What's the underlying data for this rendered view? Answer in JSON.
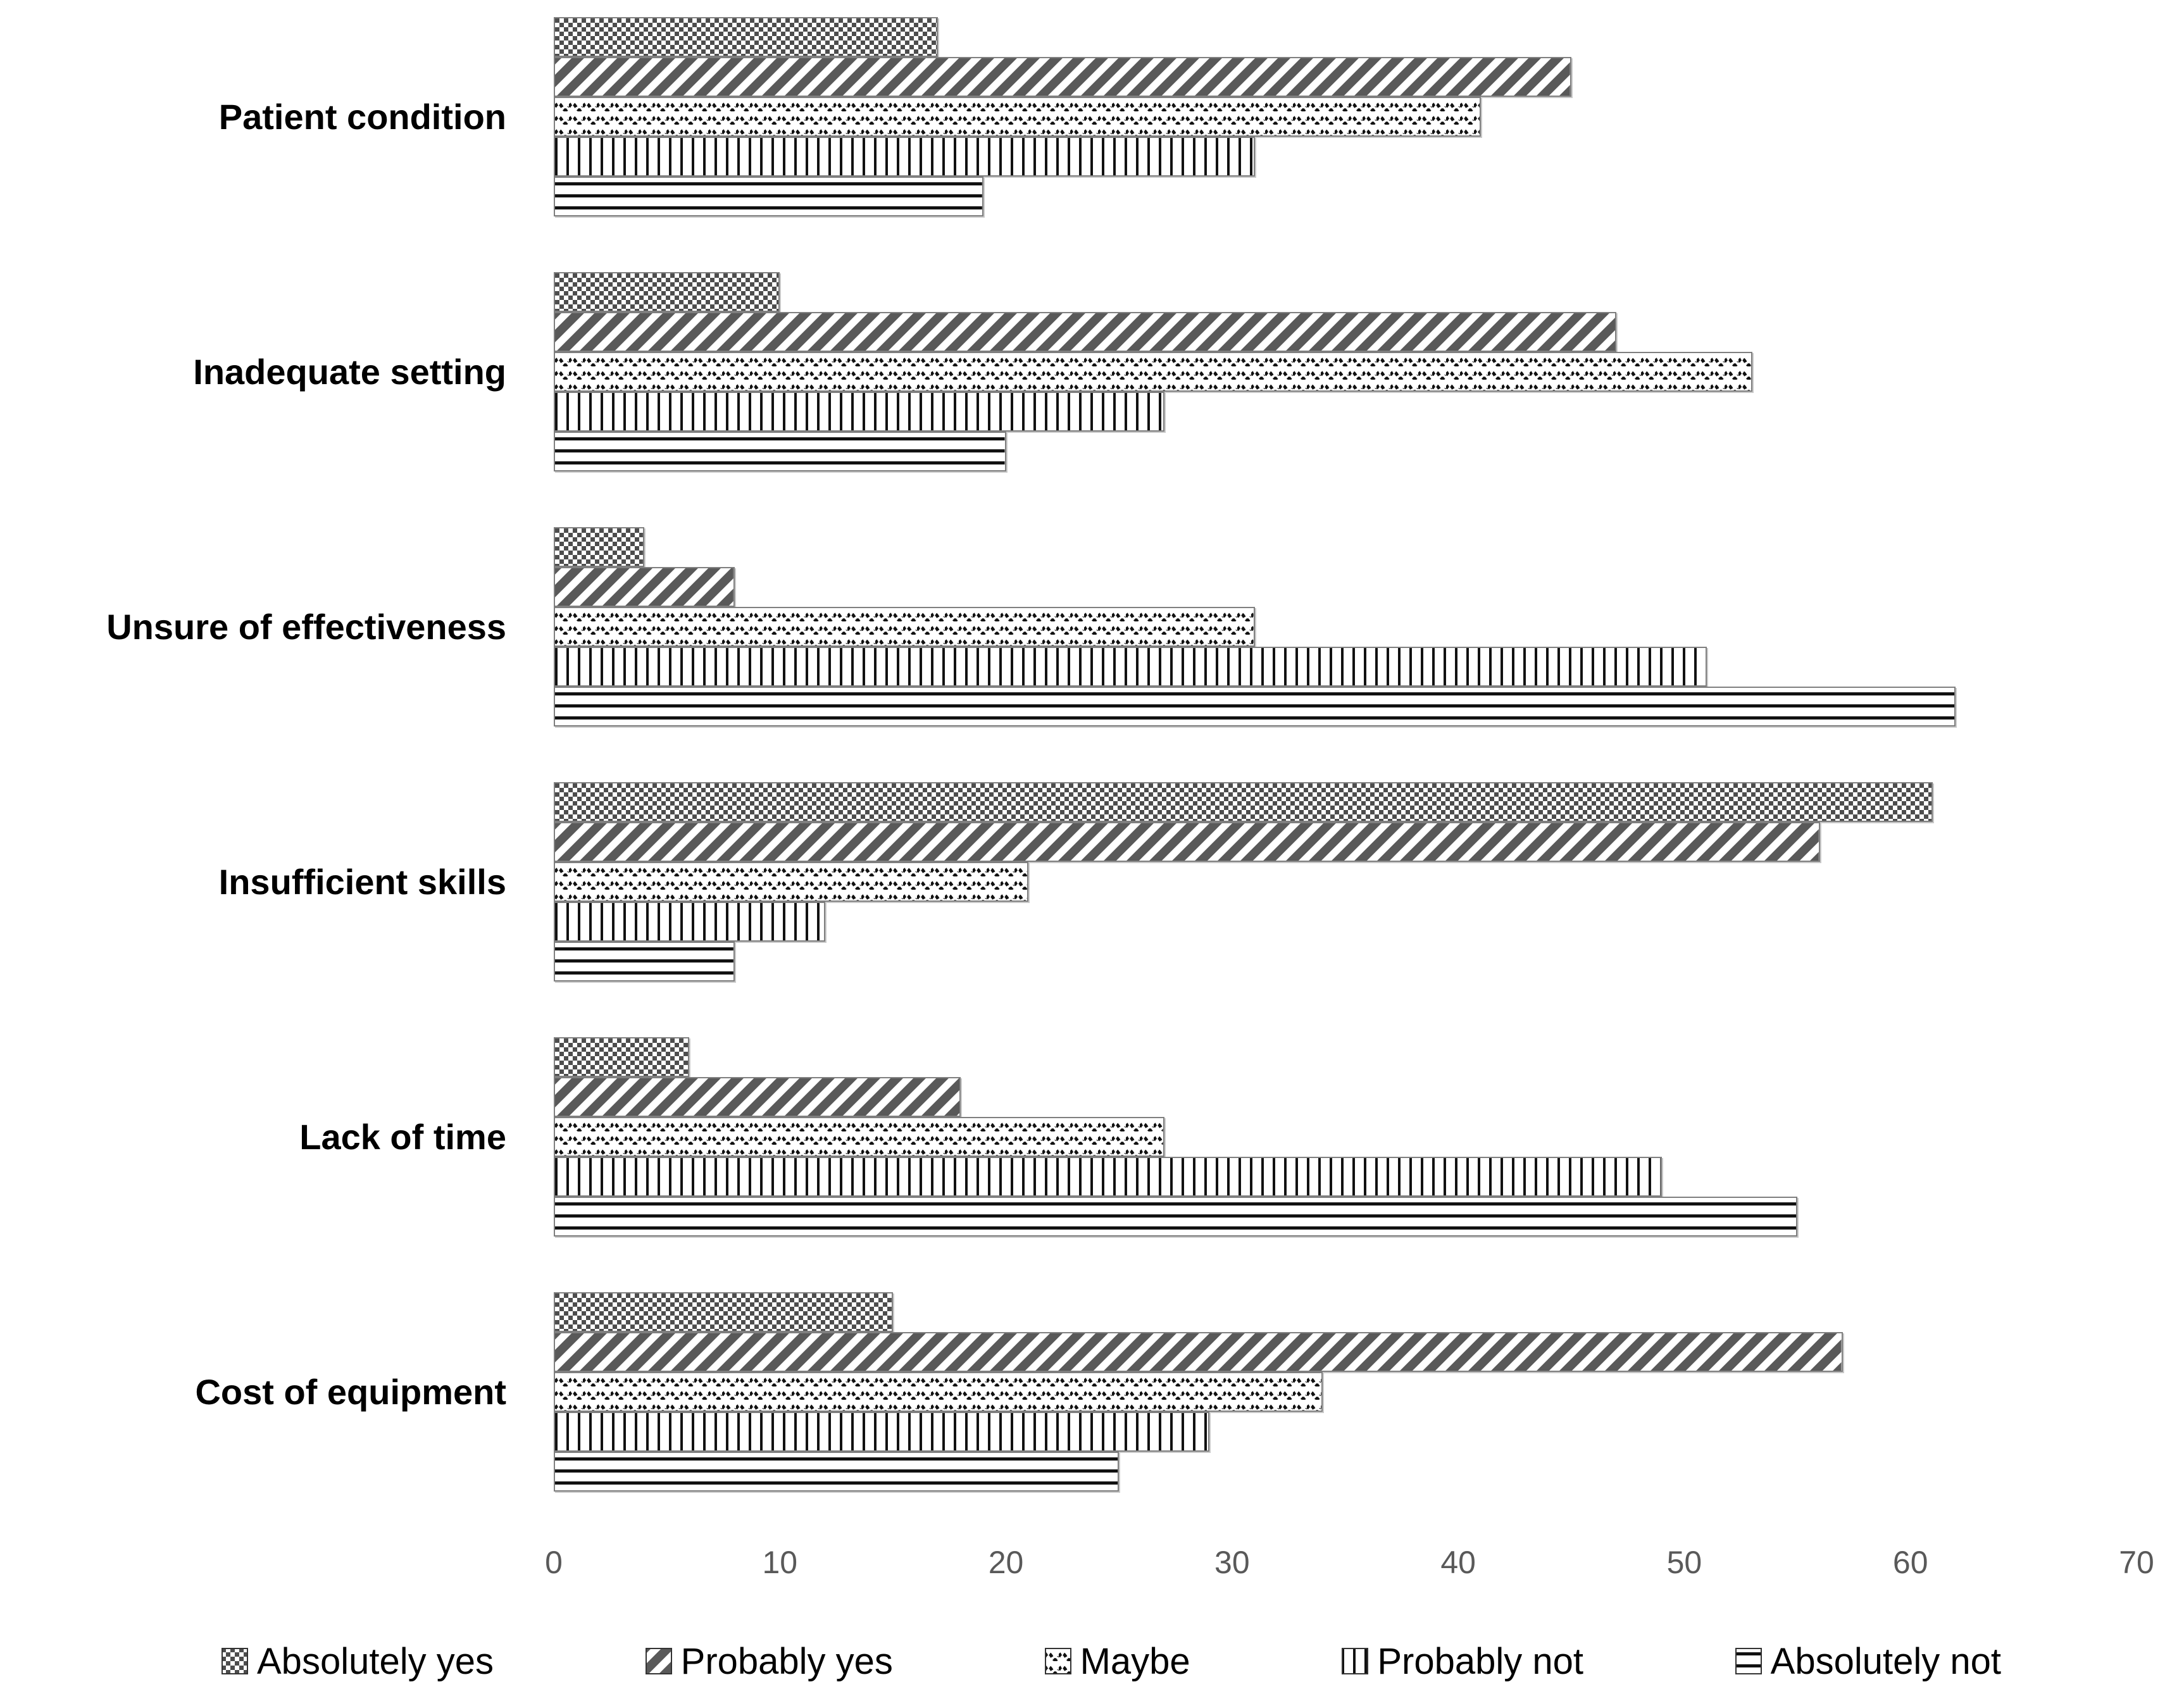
{
  "chart_data": {
    "type": "bar",
    "orientation": "horizontal",
    "title": "",
    "xlabel": "",
    "ylabel": "",
    "xlim": [
      0,
      70
    ],
    "xticks": [
      0,
      10,
      20,
      30,
      40,
      50,
      60,
      70
    ],
    "grid": false,
    "legend_position": "bottom",
    "categories": [
      "Patient condition",
      "Inadequate setting",
      "Unsure of effectiveness",
      "Insufficient skills",
      "Lack of time",
      "Cost of equipment"
    ],
    "series": [
      {
        "name": "Absolutely yes",
        "pattern": "checker",
        "values": [
          17,
          10,
          4,
          61,
          6,
          15
        ]
      },
      {
        "name": "Probably yes",
        "pattern": "diagonal",
        "values": [
          45,
          47,
          8,
          56,
          18,
          57
        ]
      },
      {
        "name": "Maybe",
        "pattern": "wave",
        "values": [
          41,
          53,
          31,
          21,
          27,
          34
        ]
      },
      {
        "name": "Probably not",
        "pattern": "vertical",
        "values": [
          31,
          27,
          51,
          12,
          49,
          29
        ]
      },
      {
        "name": "Absolutely not",
        "pattern": "horizontal",
        "values": [
          19,
          20,
          62,
          8,
          55,
          25
        ]
      }
    ],
    "colors": {
      "pattern_ink_gray": "#595959",
      "pattern_ink_black": "#111111",
      "bar_border": "#7f7f7f",
      "tick_text": "#595959",
      "label_text": "#000000",
      "background": "#ffffff"
    }
  }
}
